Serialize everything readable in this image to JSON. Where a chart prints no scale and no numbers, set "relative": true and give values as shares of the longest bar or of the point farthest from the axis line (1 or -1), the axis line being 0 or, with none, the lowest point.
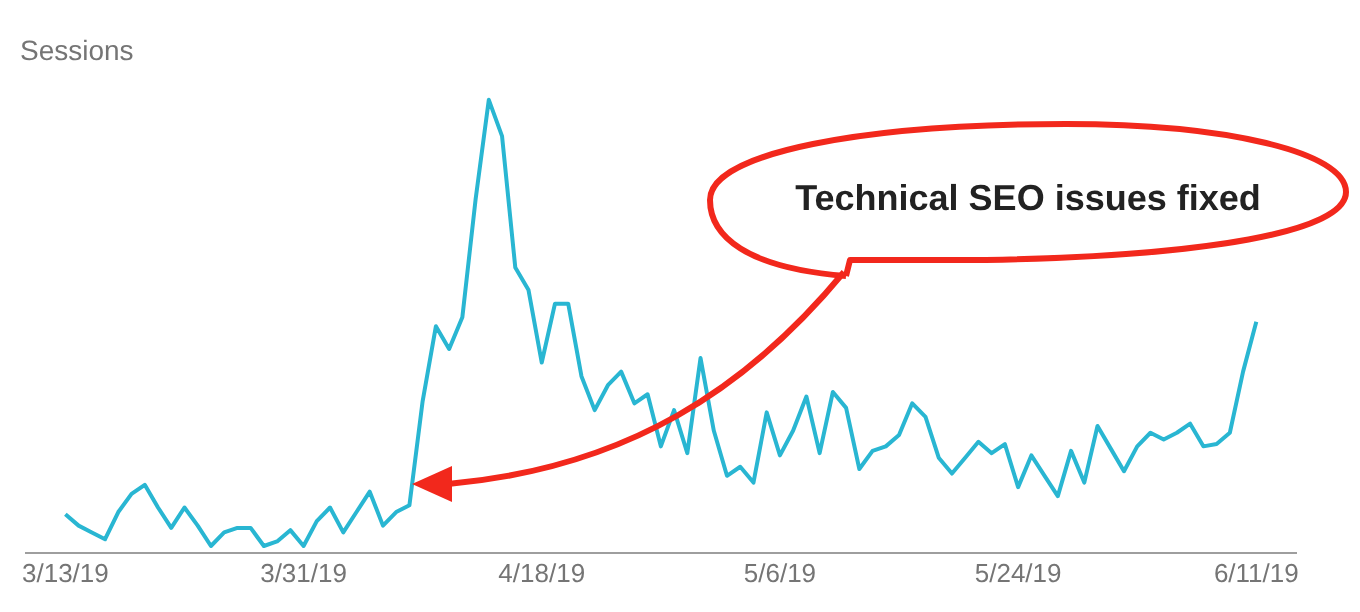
{
  "chart_data": {
    "type": "line",
    "relative": true,
    "ylabel": "Sessions",
    "x": [
      "2019-03-13",
      "2019-03-14",
      "2019-03-15",
      "2019-03-16",
      "2019-03-17",
      "2019-03-18",
      "2019-03-19",
      "2019-03-20",
      "2019-03-21",
      "2019-03-22",
      "2019-03-23",
      "2019-03-24",
      "2019-03-25",
      "2019-03-26",
      "2019-03-27",
      "2019-03-28",
      "2019-03-29",
      "2019-03-30",
      "2019-03-31",
      "2019-04-01",
      "2019-04-02",
      "2019-04-03",
      "2019-04-04",
      "2019-04-05",
      "2019-04-06",
      "2019-04-07",
      "2019-04-08",
      "2019-04-09",
      "2019-04-10",
      "2019-04-11",
      "2019-04-12",
      "2019-04-13",
      "2019-04-14",
      "2019-04-15",
      "2019-04-16",
      "2019-04-17",
      "2019-04-18",
      "2019-04-19",
      "2019-04-20",
      "2019-04-21",
      "2019-04-22",
      "2019-04-23",
      "2019-04-24",
      "2019-04-25",
      "2019-04-26",
      "2019-04-27",
      "2019-04-28",
      "2019-04-29",
      "2019-04-30",
      "2019-05-01",
      "2019-05-02",
      "2019-05-03",
      "2019-05-04",
      "2019-05-05",
      "2019-05-06",
      "2019-05-07",
      "2019-05-08",
      "2019-05-09",
      "2019-05-10",
      "2019-05-11",
      "2019-05-12",
      "2019-05-13",
      "2019-05-14",
      "2019-05-15",
      "2019-05-16",
      "2019-05-17",
      "2019-05-18",
      "2019-05-19",
      "2019-05-20",
      "2019-05-21",
      "2019-05-22",
      "2019-05-23",
      "2019-05-24",
      "2019-05-25",
      "2019-05-26",
      "2019-05-27",
      "2019-05-28",
      "2019-05-29",
      "2019-05-30",
      "2019-05-31",
      "2019-06-01",
      "2019-06-02",
      "2019-06-03",
      "2019-06-04",
      "2019-06-05",
      "2019-06-06",
      "2019-06-07",
      "2019-06-08",
      "2019-06-09",
      "2019-06-10",
      "2019-06-11"
    ],
    "series": [
      {
        "color": "#29b6d2",
        "values": [
          0.085,
          0.06,
          0.045,
          0.03,
          0.09,
          0.13,
          0.15,
          0.1,
          0.055,
          0.1,
          0.06,
          0.015,
          0.045,
          0.055,
          0.055,
          0.015,
          0.025,
          0.05,
          0.015,
          0.07,
          0.1,
          0.045,
          0.09,
          0.135,
          0.06,
          0.09,
          0.105,
          0.335,
          0.5,
          0.45,
          0.52,
          0.78,
          1.0,
          0.92,
          0.63,
          0.58,
          0.42,
          0.55,
          0.55,
          0.39,
          0.315,
          0.37,
          0.4,
          0.33,
          0.35,
          0.235,
          0.315,
          0.22,
          0.43,
          0.27,
          0.17,
          0.19,
          0.155,
          0.31,
          0.215,
          0.27,
          0.345,
          0.22,
          0.355,
          0.32,
          0.185,
          0.225,
          0.235,
          0.26,
          0.33,
          0.3,
          0.21,
          0.175,
          0.21,
          0.245,
          0.22,
          0.24,
          0.145,
          0.215,
          0.17,
          0.125,
          0.225,
          0.155,
          0.28,
          0.23,
          0.18,
          0.235,
          0.265,
          0.25,
          0.265,
          0.285,
          0.235,
          0.24,
          0.265,
          0.4,
          0.51
        ]
      }
    ],
    "xlim": [
      "2019-03-10",
      "2019-06-14"
    ],
    "xticks": [
      {
        "value": "2019-03-13",
        "label": "3/13/19"
      },
      {
        "value": "2019-03-31",
        "label": "3/31/19"
      },
      {
        "value": "2019-04-18",
        "label": "4/18/19"
      },
      {
        "value": "2019-05-06",
        "label": "5/6/19"
      },
      {
        "value": "2019-05-24",
        "label": "5/24/19"
      },
      {
        "value": "2019-06-11",
        "label": "6/11/19"
      }
    ],
    "legend": false,
    "marker": "none",
    "line_style": "solid",
    "annotations": [
      "Technical SEO issues fixed"
    ]
  }
}
